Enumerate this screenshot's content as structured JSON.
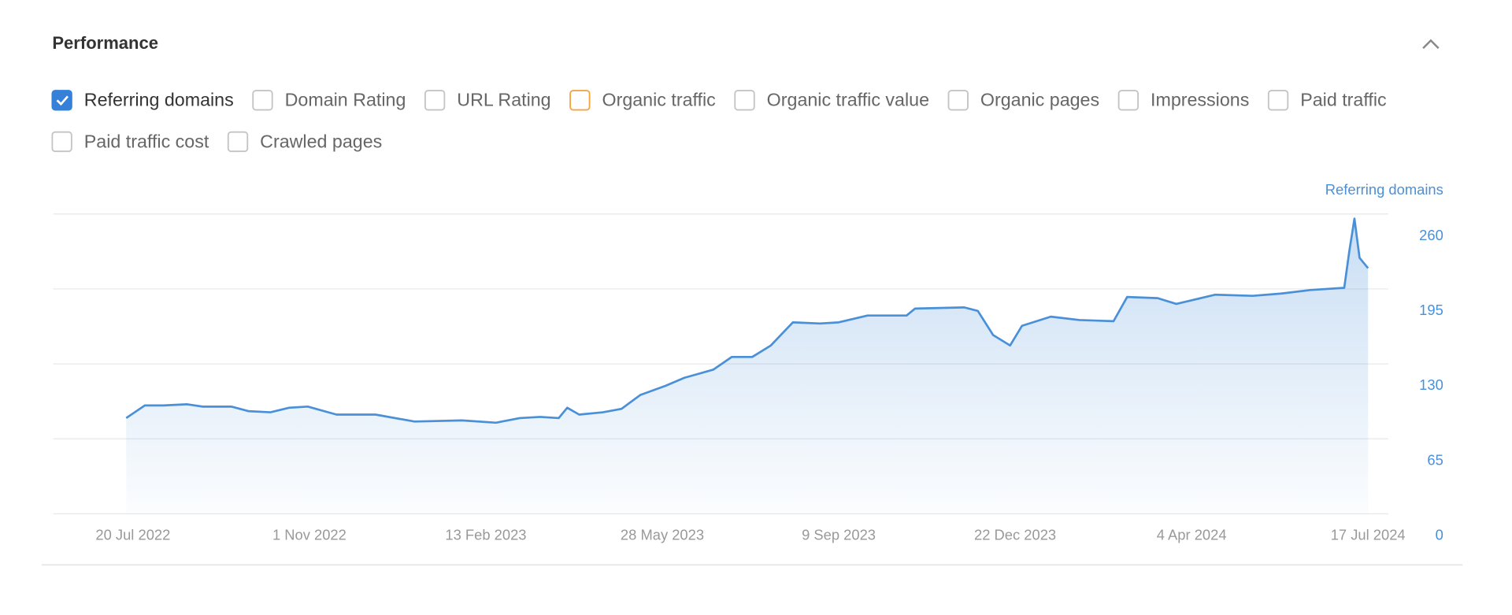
{
  "header": {
    "title": "Performance"
  },
  "metrics": [
    {
      "label": "Referring domains",
      "checked": true,
      "color": "#3580d8"
    },
    {
      "label": "Domain Rating",
      "checked": false
    },
    {
      "label": "URL Rating",
      "checked": false
    },
    {
      "label": "Organic traffic",
      "checked": false,
      "color": "#f2a541"
    },
    {
      "label": "Organic traffic value",
      "checked": false
    },
    {
      "label": "Organic pages",
      "checked": false
    },
    {
      "label": "Impressions",
      "checked": false
    },
    {
      "label": "Paid traffic",
      "checked": false
    },
    {
      "label": "Paid traffic cost",
      "checked": false
    },
    {
      "label": "Crawled pages",
      "checked": false
    }
  ],
  "chart_data": {
    "type": "area",
    "ylabel": "Referring domains",
    "color": "#4a90d9",
    "grid": true,
    "x": [
      "16 Jul 2022",
      "21 Jul 2022",
      "27 Jul 2022",
      "7 Aug 2022",
      "21 Aug 2022",
      "30 Aug 2022",
      "16 Sep 2022",
      "26 Sep 2022",
      "9 Oct 2022",
      "20 Oct 2022",
      "31 Oct 2022",
      "17 Nov 2022",
      "10 Dec 2022",
      "2 Jan 2023",
      "30 Jan 2023",
      "19 Feb 2023",
      "5 Mar 2023",
      "17 Mar 2023",
      "28 Mar 2023",
      "2 Apr 2023",
      "9 Apr 2023",
      "23 Apr 2023",
      "4 May 2023",
      "15 May 2023",
      "30 May 2023",
      "10 Jun 2023",
      "27 Jun 2023",
      "8 Jul 2023",
      "20 Jul 2023",
      "31 Jul 2023",
      "13 Aug 2023",
      "29 Aug 2023",
      "9 Sep 2023",
      "26 Sep 2023",
      "19 Oct 2023",
      "24 Oct 2023",
      "22 Nov 2023",
      "30 Nov 2023",
      "9 Dec 2023",
      "19 Dec 2023",
      "26 Dec 2023",
      "12 Jan 2024",
      "29 Jan 2024",
      "18 Feb 2024",
      "26 Feb 2024",
      "15 Mar 2024",
      "26 Mar 2024",
      "18 Apr 2024",
      "10 May 2024",
      "27 May 2024",
      "13 Jun 2024",
      "3 Jul 2024",
      "6 Jul 2024",
      "9 Jul 2024",
      "12 Jul 2024",
      "17 Jul 2024"
    ],
    "values": [
      83,
      88,
      94,
      94,
      95,
      93,
      93,
      89,
      88,
      92,
      93,
      86,
      86,
      80,
      81,
      79,
      83,
      84,
      83,
      92,
      86,
      88,
      91,
      103,
      111,
      118,
      125,
      136,
      136,
      146,
      166,
      165,
      166,
      172,
      172,
      178,
      179,
      176,
      155,
      146,
      163,
      171,
      168,
      167,
      188,
      187,
      182,
      190,
      189,
      191,
      194,
      196,
      228,
      256,
      222,
      213
    ],
    "xlim": [
      "3 Jun 2022",
      "29 Jul 2024"
    ],
    "xticks": [
      "20 Jul 2022",
      "1 Nov 2022",
      "13 Feb 2023",
      "28 May 2023",
      "9 Sep 2023",
      "22 Dec 2023",
      "4 Apr 2024",
      "17 Jul 2024"
    ],
    "ylim": [
      0,
      260
    ],
    "yticks": [
      0,
      65,
      130,
      195,
      260
    ]
  }
}
